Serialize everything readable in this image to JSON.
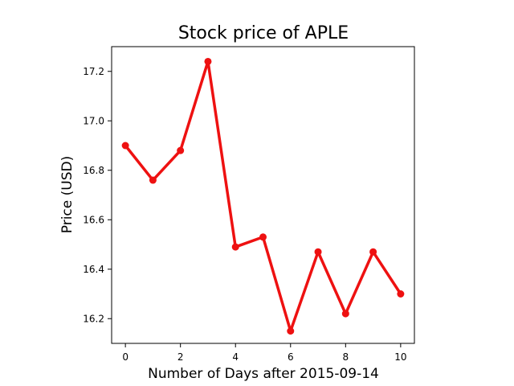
{
  "chart_data": {
    "type": "line",
    "title": "Stock price of APLE",
    "xlabel": "Number of Days after 2015-09-14",
    "ylabel": "Price (USD)",
    "xlim": [
      -0.5,
      10.5
    ],
    "ylim": [
      16.1,
      17.3
    ],
    "xticks": [
      0,
      2,
      4,
      6,
      8,
      10
    ],
    "yticks": [
      16.2,
      16.4,
      16.6,
      16.8,
      17.0,
      17.2
    ],
    "xtick_labels": [
      "0",
      "2",
      "4",
      "6",
      "8",
      "10"
    ],
    "ytick_labels": [
      "16.2",
      "16.4",
      "16.6",
      "16.8",
      "17.0",
      "17.2"
    ],
    "grid": false,
    "series": [
      {
        "color": "#ee1111",
        "marker": "circle",
        "x": [
          0,
          1,
          2,
          3,
          4,
          5,
          6,
          7,
          8,
          9,
          10
        ],
        "y": [
          16.9,
          16.76,
          16.88,
          17.24,
          16.49,
          16.53,
          16.15,
          16.47,
          16.22,
          16.47,
          16.3
        ]
      }
    ]
  }
}
